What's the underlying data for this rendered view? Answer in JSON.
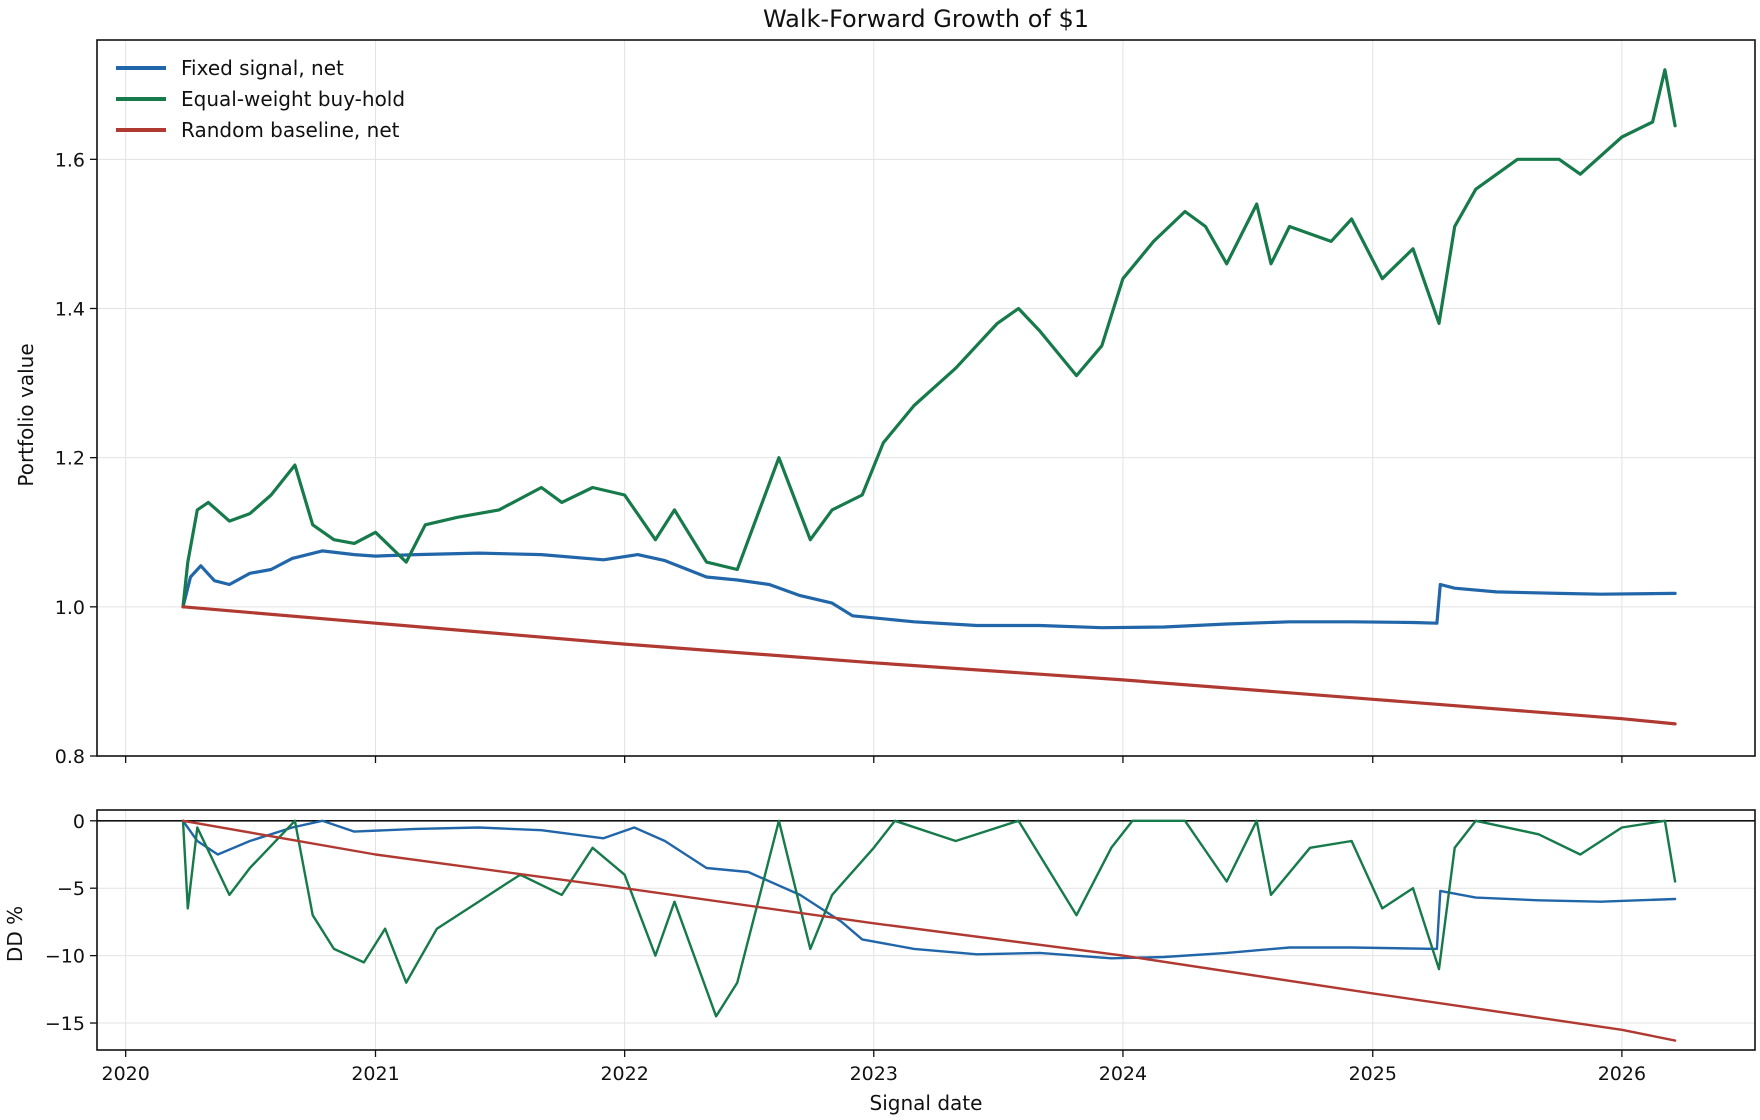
{
  "chart_data": [
    {
      "type": "line",
      "title": "Walk-Forward Growth of $1",
      "xlabel": "",
      "ylabel": "Portfolio value",
      "ylim": [
        0.8,
        1.76
      ],
      "yticks": [
        0.8,
        1.0,
        1.2,
        1.4,
        1.6
      ],
      "ytick_labels": [
        "0.8",
        "1.0",
        "1.2",
        "1.4",
        "1.6"
      ],
      "grid": true,
      "legend": "top-left",
      "series": [
        {
          "name": "Fixed signal, net",
          "color": "#2266aa",
          "points": [
            [
              "2020-03-25",
              1.0
            ],
            [
              "2020-04-05",
              1.04
            ],
            [
              "2020-04-20",
              1.055
            ],
            [
              "2020-05-10",
              1.035
            ],
            [
              "2020-06-01",
              1.03
            ],
            [
              "2020-07-01",
              1.045
            ],
            [
              "2020-08-01",
              1.05
            ],
            [
              "2020-09-01",
              1.065
            ],
            [
              "2020-10-15",
              1.075
            ],
            [
              "2020-12-01",
              1.07
            ],
            [
              "2021-01-01",
              1.068
            ],
            [
              "2021-03-01",
              1.07
            ],
            [
              "2021-06-01",
              1.072
            ],
            [
              "2021-09-01",
              1.07
            ],
            [
              "2021-12-01",
              1.063
            ],
            [
              "2022-01-20",
              1.07
            ],
            [
              "2022-03-01",
              1.062
            ],
            [
              "2022-05-01",
              1.04
            ],
            [
              "2022-06-15",
              1.036
            ],
            [
              "2022-08-01",
              1.03
            ],
            [
              "2022-09-15",
              1.015
            ],
            [
              "2022-11-01",
              1.005
            ],
            [
              "2022-12-01",
              0.988
            ],
            [
              "2023-03-01",
              0.98
            ],
            [
              "2023-06-01",
              0.975
            ],
            [
              "2023-09-01",
              0.975
            ],
            [
              "2023-12-01",
              0.972
            ],
            [
              "2024-03-01",
              0.973
            ],
            [
              "2024-06-01",
              0.977
            ],
            [
              "2024-09-01",
              0.98
            ],
            [
              "2024-12-01",
              0.98
            ],
            [
              "2025-03-01",
              0.979
            ],
            [
              "2025-04-05",
              0.978
            ],
            [
              "2025-04-10",
              1.03
            ],
            [
              "2025-05-01",
              1.025
            ],
            [
              "2025-07-01",
              1.02
            ],
            [
              "2025-10-01",
              1.018
            ],
            [
              "2025-12-01",
              1.017
            ],
            [
              "2026-03-20",
              1.018
            ]
          ]
        },
        {
          "name": "Equal-weight buy-hold",
          "color": "#167a4a",
          "points": [
            [
              "2020-03-25",
              1.0
            ],
            [
              "2020-04-01",
              1.06
            ],
            [
              "2020-04-15",
              1.13
            ],
            [
              "2020-05-01",
              1.14
            ],
            [
              "2020-06-01",
              1.115
            ],
            [
              "2020-07-01",
              1.125
            ],
            [
              "2020-08-01",
              1.15
            ],
            [
              "2020-09-05",
              1.19
            ],
            [
              "2020-10-01",
              1.11
            ],
            [
              "2020-11-01",
              1.09
            ],
            [
              "2020-12-01",
              1.085
            ],
            [
              "2021-01-01",
              1.1
            ],
            [
              "2021-02-15",
              1.06
            ],
            [
              "2021-03-15",
              1.11
            ],
            [
              "2021-05-01",
              1.12
            ],
            [
              "2021-07-01",
              1.13
            ],
            [
              "2021-09-01",
              1.16
            ],
            [
              "2021-10-01",
              1.14
            ],
            [
              "2021-11-15",
              1.16
            ],
            [
              "2022-01-01",
              1.15
            ],
            [
              "2022-02-15",
              1.09
            ],
            [
              "2022-03-15",
              1.13
            ],
            [
              "2022-05-01",
              1.06
            ],
            [
              "2022-06-15",
              1.05
            ],
            [
              "2022-08-15",
              1.2
            ],
            [
              "2022-09-30",
              1.09
            ],
            [
              "2022-11-01",
              1.13
            ],
            [
              "2022-12-15",
              1.15
            ],
            [
              "2023-01-15",
              1.22
            ],
            [
              "2023-03-01",
              1.27
            ],
            [
              "2023-05-01",
              1.32
            ],
            [
              "2023-07-01",
              1.38
            ],
            [
              "2023-08-01",
              1.4
            ],
            [
              "2023-09-01",
              1.37
            ],
            [
              "2023-10-25",
              1.31
            ],
            [
              "2023-12-01",
              1.35
            ],
            [
              "2024-01-01",
              1.44
            ],
            [
              "2024-02-15",
              1.49
            ],
            [
              "2024-04-01",
              1.53
            ],
            [
              "2024-05-01",
              1.51
            ],
            [
              "2024-06-01",
              1.46
            ],
            [
              "2024-07-15",
              1.54
            ],
            [
              "2024-08-05",
              1.46
            ],
            [
              "2024-09-01",
              1.51
            ],
            [
              "2024-11-01",
              1.49
            ],
            [
              "2024-12-01",
              1.52
            ],
            [
              "2025-01-15",
              1.44
            ],
            [
              "2025-03-01",
              1.48
            ],
            [
              "2025-04-08",
              1.38
            ],
            [
              "2025-05-01",
              1.51
            ],
            [
              "2025-06-01",
              1.56
            ],
            [
              "2025-08-01",
              1.6
            ],
            [
              "2025-10-01",
              1.6
            ],
            [
              "2025-11-01",
              1.58
            ],
            [
              "2026-01-01",
              1.63
            ],
            [
              "2026-02-15",
              1.65
            ],
            [
              "2026-03-05",
              1.72
            ],
            [
              "2026-03-20",
              1.645
            ]
          ]
        },
        {
          "name": "Random baseline, net",
          "color": "#b03a32",
          "points": [
            [
              "2020-03-25",
              1.0
            ],
            [
              "2021-01-01",
              0.978
            ],
            [
              "2022-01-01",
              0.95
            ],
            [
              "2023-01-01",
              0.925
            ],
            [
              "2024-01-01",
              0.902
            ],
            [
              "2025-01-01",
              0.876
            ],
            [
              "2026-01-01",
              0.85
            ],
            [
              "2026-03-20",
              0.843
            ]
          ]
        }
      ]
    },
    {
      "type": "line",
      "title": "",
      "xlabel": "Signal date",
      "ylabel": "DD %",
      "ylim": [
        -17,
        0.8
      ],
      "yticks": [
        0,
        -5,
        -10,
        -15
      ],
      "ytick_labels": [
        "0",
        "−5",
        "−10",
        "−15"
      ],
      "xticks": [
        "2020-01-01",
        "2021-01-01",
        "2022-01-01",
        "2023-01-01",
        "2024-01-01",
        "2025-01-01",
        "2026-01-01"
      ],
      "xtick_labels": [
        "2020",
        "2021",
        "2022",
        "2023",
        "2024",
        "2025",
        "2026"
      ],
      "grid": true,
      "zero_line": true,
      "series": [
        {
          "name": "Fixed signal, net",
          "color": "#2266aa",
          "points": [
            [
              "2020-03-25",
              0.0
            ],
            [
              "2020-04-15",
              -1.5
            ],
            [
              "2020-05-15",
              -2.5
            ],
            [
              "2020-07-01",
              -1.5
            ],
            [
              "2020-09-01",
              -0.5
            ],
            [
              "2020-10-15",
              0.0
            ],
            [
              "2020-12-01",
              -0.8
            ],
            [
              "2021-03-01",
              -0.6
            ],
            [
              "2021-06-01",
              -0.5
            ],
            [
              "2021-09-01",
              -0.7
            ],
            [
              "2021-12-01",
              -1.3
            ],
            [
              "2022-01-15",
              -0.5
            ],
            [
              "2022-03-01",
              -1.5
            ],
            [
              "2022-05-01",
              -3.5
            ],
            [
              "2022-07-01",
              -3.8
            ],
            [
              "2022-09-15",
              -5.5
            ],
            [
              "2022-11-15",
              -7.5
            ],
            [
              "2022-12-15",
              -8.8
            ],
            [
              "2023-03-01",
              -9.5
            ],
            [
              "2023-06-01",
              -9.9
            ],
            [
              "2023-09-01",
              -9.8
            ],
            [
              "2023-12-15",
              -10.2
            ],
            [
              "2024-03-01",
              -10.1
            ],
            [
              "2024-06-01",
              -9.8
            ],
            [
              "2024-09-01",
              -9.4
            ],
            [
              "2024-12-01",
              -9.4
            ],
            [
              "2025-04-05",
              -9.5
            ],
            [
              "2025-04-10",
              -5.2
            ],
            [
              "2025-06-01",
              -5.7
            ],
            [
              "2025-09-01",
              -5.9
            ],
            [
              "2025-12-01",
              -6.0
            ],
            [
              "2026-03-20",
              -5.8
            ]
          ]
        },
        {
          "name": "Equal-weight buy-hold",
          "color": "#167a4a",
          "points": [
            [
              "2020-03-25",
              0.0
            ],
            [
              "2020-04-01",
              -6.5
            ],
            [
              "2020-04-15",
              -0.5
            ],
            [
              "2020-06-01",
              -5.5
            ],
            [
              "2020-07-01",
              -3.5
            ],
            [
              "2020-09-05",
              0.0
            ],
            [
              "2020-10-01",
              -7.0
            ],
            [
              "2020-11-01",
              -9.5
            ],
            [
              "2020-12-15",
              -10.5
            ],
            [
              "2021-01-15",
              -8.0
            ],
            [
              "2021-02-15",
              -12.0
            ],
            [
              "2021-04-01",
              -8.0
            ],
            [
              "2021-06-01",
              -6.0
            ],
            [
              "2021-08-01",
              -4.0
            ],
            [
              "2021-10-01",
              -5.5
            ],
            [
              "2021-11-15",
              -2.0
            ],
            [
              "2022-01-01",
              -4.0
            ],
            [
              "2022-02-15",
              -10.0
            ],
            [
              "2022-03-15",
              -6.0
            ],
            [
              "2022-05-15",
              -14.5
            ],
            [
              "2022-06-15",
              -12.0
            ],
            [
              "2022-08-15",
              0.0
            ],
            [
              "2022-09-30",
              -9.5
            ],
            [
              "2022-11-01",
              -5.5
            ],
            [
              "2023-01-01",
              -2.0
            ],
            [
              "2023-02-01",
              0.0
            ],
            [
              "2023-05-01",
              -1.5
            ],
            [
              "2023-08-01",
              0.0
            ],
            [
              "2023-10-25",
              -7.0
            ],
            [
              "2023-12-15",
              -2.0
            ],
            [
              "2024-01-15",
              0.0
            ],
            [
              "2024-04-01",
              0.0
            ],
            [
              "2024-06-01",
              -4.5
            ],
            [
              "2024-07-15",
              0.0
            ],
            [
              "2024-08-05",
              -5.5
            ],
            [
              "2024-10-01",
              -2.0
            ],
            [
              "2024-12-01",
              -1.5
            ],
            [
              "2025-01-15",
              -6.5
            ],
            [
              "2025-03-01",
              -5.0
            ],
            [
              "2025-04-08",
              -11.0
            ],
            [
              "2025-05-01",
              -2.0
            ],
            [
              "2025-06-01",
              0.0
            ],
            [
              "2025-09-01",
              -1.0
            ],
            [
              "2025-11-01",
              -2.5
            ],
            [
              "2026-01-01",
              -0.5
            ],
            [
              "2026-03-05",
              0.0
            ],
            [
              "2026-03-20",
              -4.5
            ]
          ]
        },
        {
          "name": "Random baseline, net",
          "color": "#b03a32",
          "points": [
            [
              "2020-03-25",
              0.0
            ],
            [
              "2021-01-01",
              -2.5
            ],
            [
              "2022-01-01",
              -5.0
            ],
            [
              "2023-01-01",
              -7.6
            ],
            [
              "2024-01-01",
              -10.0
            ],
            [
              "2025-01-01",
              -12.8
            ],
            [
              "2026-01-01",
              -15.5
            ],
            [
              "2026-03-20",
              -16.3
            ]
          ]
        }
      ]
    }
  ]
}
